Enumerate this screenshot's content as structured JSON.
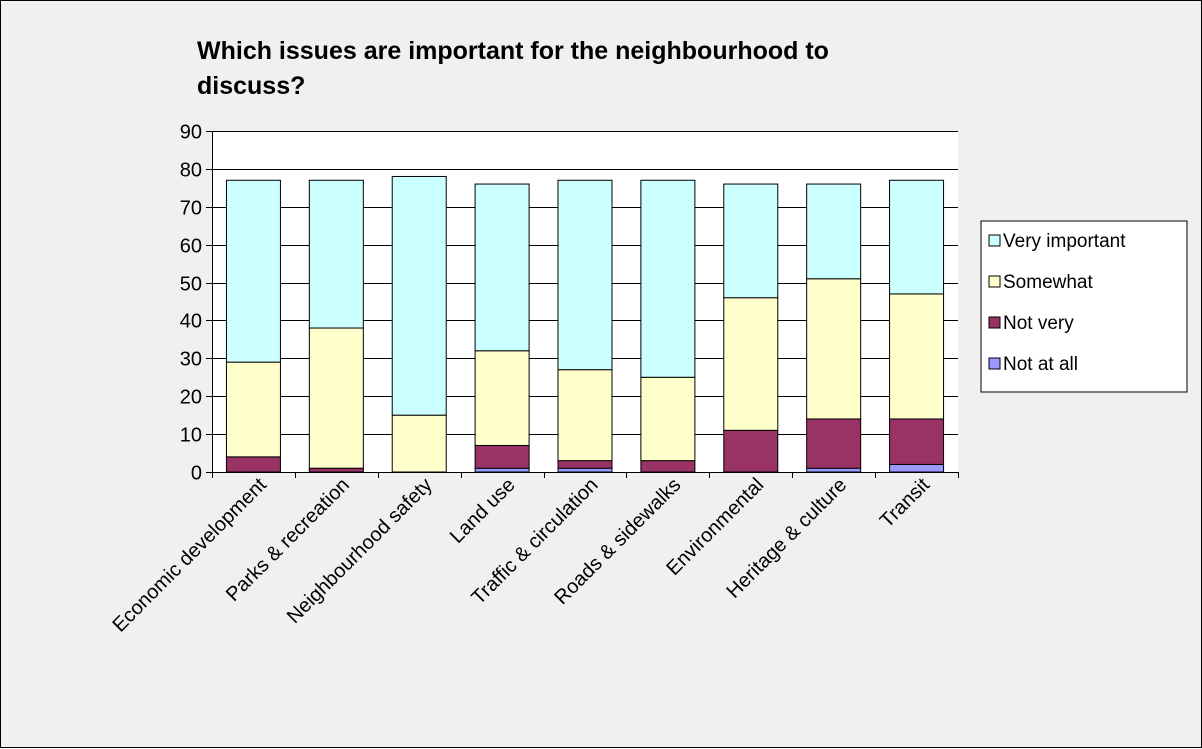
{
  "chart_data": {
    "type": "bar",
    "stacked": true,
    "title": "Which issues are important for the neighbourhood to discuss?",
    "title_lines": [
      "Which issues are important for the neighbourhood to",
      "discuss?"
    ],
    "xlabel": "",
    "ylabel": "",
    "ylim": [
      0,
      90
    ],
    "yticks": [
      0,
      10,
      20,
      30,
      40,
      50,
      60,
      70,
      80,
      90
    ],
    "grid": true,
    "legend_position": "right",
    "categories": [
      "Economic development",
      "Parks & recreation",
      "Neighbourhood safety",
      "Land use",
      "Traffic & circulation",
      "Roads & sidewalks",
      "Environmental",
      "Heritage & culture",
      "Transit"
    ],
    "series": [
      {
        "name": "Not at all",
        "color": "#9999ff",
        "values": [
          0,
          0,
          0,
          1,
          1,
          0,
          0,
          1,
          2
        ]
      },
      {
        "name": "Not very",
        "color": "#993366",
        "values": [
          4,
          1,
          0,
          6,
          2,
          3,
          11,
          13,
          12
        ]
      },
      {
        "name": "Somewhat",
        "color": "#ffffcc",
        "values": [
          25,
          37,
          15,
          25,
          24,
          22,
          35,
          37,
          33
        ]
      },
      {
        "name": "Very important",
        "color": "#ccffff",
        "values": [
          48,
          39,
          63,
          44,
          50,
          52,
          30,
          25,
          30
        ]
      }
    ]
  }
}
